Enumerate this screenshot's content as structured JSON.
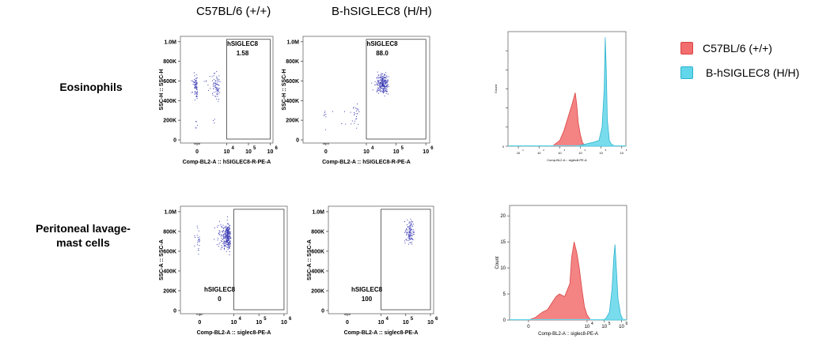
{
  "column_headers": [
    "C57BL/6 (+/+)",
    "B-hSIGLEC8 (H/H)"
  ],
  "row_labels": [
    "Eosinophils",
    "Peritoneal lavage-\nmast cells"
  ],
  "legend": [
    {
      "label": "C57BL/6 (+/+)",
      "color": "#f26d6d",
      "border": "#d94545"
    },
    {
      "label": "B-hSIGLEC8 (H/H)",
      "color": "#62d6ea",
      "border": "#2bb3cc"
    }
  ],
  "colors": {
    "dots": "#3d3db5",
    "wt_fill": "#f26d6d",
    "h_fill": "#62d6ea"
  },
  "chart_data": [
    {
      "type": "scatter",
      "title": "Eosinophils C57BL/6 (+/+)",
      "xlabel": "Comp-BL2-A :: hSIGLEC8-R-PE-A",
      "ylabel": "SSC-H :: SSC-H",
      "yticks": [
        "0",
        "200K",
        "400K",
        "600K",
        "800K",
        "1.0M"
      ],
      "xticks": [
        "0",
        "10",
        "10",
        "10"
      ],
      "xexp": [
        "",
        "4",
        "5",
        "6"
      ],
      "gate": {
        "label": "hSIGLEC8",
        "value": "1.58",
        "x": [
          10000,
          1000000
        ],
        "y": [
          0,
          1000000
        ],
        "label_pos": "top"
      },
      "points": [
        {
          "x_center": 0,
          "x_spread": 1200,
          "y_center": 550000,
          "y_spread": 150000,
          "n": 150
        },
        {
          "x_center": 300,
          "x_spread": 900,
          "y_center": 150000,
          "y_spread": 80000,
          "n": 8
        }
      ]
    },
    {
      "type": "scatter",
      "title": "Eosinophils B-hSIGLEC8 (H/H)",
      "xlabel": "Comp-BL2-A :: hSIGLEC8-R-PE-A",
      "ylabel": "SSC-H :: SSC-H",
      "yticks": [
        "0",
        "200K",
        "400K",
        "600K",
        "800K",
        "1.0M"
      ],
      "xticks": [
        "0",
        "10",
        "10",
        "10"
      ],
      "xexp": [
        "",
        "4",
        "5",
        "6"
      ],
      "gate": {
        "label": "hSIGLEC8",
        "value": "88.0",
        "x": [
          10000,
          1000000
        ],
        "y": [
          0,
          1000000
        ],
        "label_pos": "top"
      },
      "points": [
        {
          "x_center": 35000,
          "x_spread": 20000,
          "y_center": 570000,
          "y_spread": 120000,
          "n": 240
        },
        {
          "x_center": 500,
          "x_spread": 1500,
          "y_center": 250000,
          "y_spread": 150000,
          "n": 35
        }
      ]
    },
    {
      "type": "area",
      "title": "Eosinophils overlay",
      "xlabel": "Comp-BL2-A :: siglec8-PE-A",
      "ylabel": "Count",
      "yticks": [
        "0",
        "",
        "",
        "",
        "",
        ""
      ],
      "xticks": [
        "10",
        "10",
        "10",
        "10",
        "10",
        "10"
      ],
      "xexp": [
        "1",
        "2",
        "3",
        "4",
        "5",
        "6"
      ],
      "xlog": [
        0.5,
        6.2
      ],
      "ymax": 60,
      "series": [
        {
          "name": "C57BL/6 (+/+)",
          "x": [
            2.7,
            3.0,
            3.2,
            3.4,
            3.6,
            3.7,
            3.75,
            3.82,
            3.9,
            4.0,
            4.1,
            4.2,
            4.4
          ],
          "y": [
            0.5,
            3,
            8,
            15,
            22,
            26,
            28,
            22,
            12,
            6,
            2,
            0.5,
            0
          ]
        },
        {
          "name": "B-hSIGLEC8 (H/H)",
          "x": [
            3.8,
            4.2,
            4.6,
            4.9,
            5.05,
            5.15,
            5.2,
            5.25,
            5.3,
            5.4,
            5.5,
            5.7
          ],
          "y": [
            0,
            1,
            2,
            3,
            10,
            30,
            57,
            40,
            14,
            3,
            1,
            0
          ]
        }
      ]
    },
    {
      "type": "scatter",
      "title": "Peritoneal lavage-mast cells C57BL/6 (+/+)",
      "xlabel": "Comp-BL2-A :: siglec8-PE-A",
      "ylabel": "SSC-A :: SSC-A",
      "yticks": [
        "0",
        "200K",
        "400K",
        "600K",
        "800K",
        "1.0M"
      ],
      "xticks": [
        "0",
        "10",
        "10",
        "10"
      ],
      "xexp": [
        "",
        "4",
        "5",
        "6"
      ],
      "gate": {
        "label": "hSIGLEC8",
        "value": "0",
        "x": [
          10000,
          1000000
        ],
        "y": [
          0,
          1000000
        ],
        "label_pos": "bottom"
      },
      "points": [
        {
          "x_center": 1500,
          "x_spread": 2500,
          "y_center": 750000,
          "y_spread": 170000,
          "n": 320
        }
      ]
    },
    {
      "type": "scatter",
      "title": "Peritoneal lavage-mast cells B-hSIGLEC8 (H/H)",
      "xlabel": "Comp-BL2-A :: siglec8-PE-A",
      "ylabel": "SSC-A :: SSC-A",
      "yticks": [
        "0",
        "200K",
        "400K",
        "600K",
        "800K",
        "1.0M"
      ],
      "xticks": [
        "0",
        "10",
        "10",
        "10"
      ],
      "xexp": [
        "",
        "4",
        "5",
        "6"
      ],
      "gate": {
        "label": "hSIGLEC8",
        "value": "100",
        "x": [
          10000,
          1000000
        ],
        "y": [
          0,
          1000000
        ],
        "label_pos": "bottom"
      },
      "points": [
        {
          "x_center": 150000,
          "x_spread": 70000,
          "y_center": 800000,
          "y_spread": 150000,
          "n": 110
        }
      ]
    },
    {
      "type": "area",
      "title": "Peritoneal lavage-mast cells overlay",
      "xlabel": "Comp-BL2-A :: siglec8-PE-A",
      "ylabel": "Count",
      "yticks": [
        "0",
        "5",
        "10",
        "15",
        "20"
      ],
      "xticks": [
        "0",
        "10",
        "10",
        "10"
      ],
      "xexp": [
        "",
        "4",
        "5",
        "6"
      ],
      "xlog": [
        -0.5,
        6.3
      ],
      "ymax": 22,
      "series": [
        {
          "name": "C57BL/6 (+/+)",
          "x": [
            0.6,
            1.0,
            1.4,
            1.7,
            2.0,
            2.2,
            2.4,
            2.7,
            3.0,
            3.1,
            3.25,
            3.4,
            3.55,
            3.7,
            3.85,
            4.0,
            4.2
          ],
          "y": [
            0,
            0.5,
            1.5,
            2,
            3.5,
            4.5,
            5,
            4.5,
            7,
            12,
            15,
            13,
            10,
            6,
            2.5,
            1,
            0
          ]
        },
        {
          "name": "B-hSIGLEC8 (H/H)",
          "x": [
            4.9,
            5.1,
            5.3,
            5.45,
            5.55,
            5.62,
            5.7,
            5.8,
            5.95,
            6.1
          ],
          "y": [
            0,
            0.3,
            1.5,
            6,
            12,
            14.5,
            10,
            4,
            1,
            0
          ]
        }
      ]
    }
  ]
}
